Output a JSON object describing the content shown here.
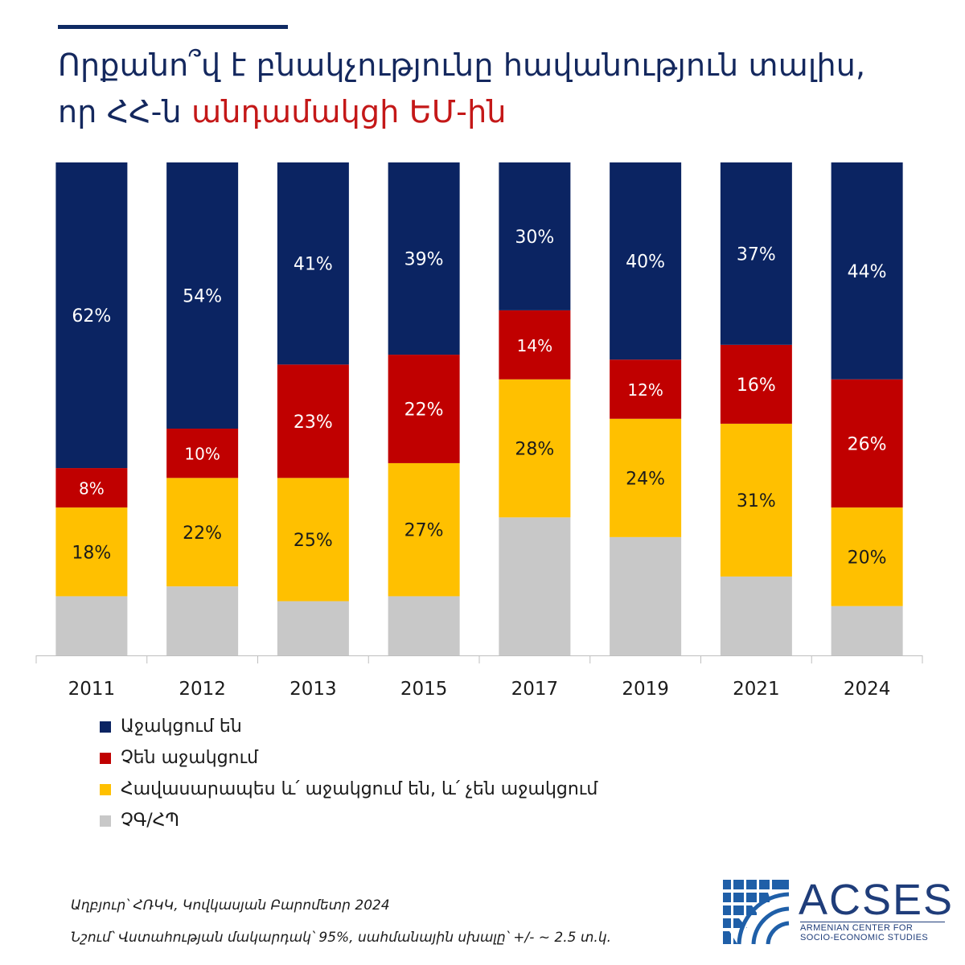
{
  "title": {
    "line1": "Որքանո՞վ է բնակչությունը հավանություն տալիս,",
    "line2_prefix": "որ ՀՀ-ն",
    "line2_highlight": "անդամակցի ԵՄ-ին"
  },
  "chart_data": {
    "type": "bar",
    "stacked": true,
    "categories": [
      "2011",
      "2012",
      "2013",
      "2015",
      "2017",
      "2019",
      "2021",
      "2024"
    ],
    "series": [
      {
        "name": "ՉԳ/ՀՊ",
        "color": "#c8c8c8",
        "values": [
          12,
          14,
          11,
          12,
          28,
          24,
          16,
          10
        ],
        "labels": [
          "",
          "",
          "",
          "",
          "",
          "",
          "",
          ""
        ]
      },
      {
        "name": "Հավասարապես և՛ աջակցում են, և՛ չեն աջակցում",
        "color": "#ffc000",
        "values": [
          18,
          22,
          25,
          27,
          28,
          24,
          31,
          20
        ],
        "labels": [
          "18%",
          "22%",
          "25%",
          "27%",
          "28%",
          "24%",
          "31%",
          "20%"
        ]
      },
      {
        "name": "Չեն աջակցում",
        "color": "#c00000",
        "values": [
          8,
          10,
          23,
          22,
          14,
          12,
          16,
          26
        ],
        "labels": [
          "8%",
          "10%",
          "23%",
          "22%",
          "14%",
          "12%",
          "16%",
          "26%"
        ]
      },
      {
        "name": "Աջակցում են",
        "color": "#0b2462",
        "values": [
          62,
          54,
          41,
          39,
          30,
          40,
          37,
          44
        ],
        "labels": [
          "62%",
          "54%",
          "41%",
          "39%",
          "30%",
          "40%",
          "37%",
          "44%"
        ]
      }
    ],
    "ylim": [
      0,
      100
    ],
    "grid": false,
    "legend_position": "bottom-left"
  },
  "legend": [
    {
      "label": "Աջակցում են",
      "color": "#0b2462"
    },
    {
      "label": "Չեն աջակցում",
      "color": "#c00000"
    },
    {
      "label": "Հավասարապես և՛ աջակցում են, և՛ չեն աջակցում",
      "color": "#ffc000"
    },
    {
      "label": "ՉԳ/ՀՊ",
      "color": "#c8c8c8"
    }
  ],
  "footnotes": {
    "source": "Աղբյուր՝ ՀՌԿԿ, Կովկասյան Բարոմետր 2024",
    "note": "Նշում՝ Վստահության մակարդակ՝ 95%, սահմանային սխալը՝ +/- ~ 2.5 տ.կ."
  },
  "logo": {
    "name": "ACSES",
    "subtitle_line1": "ARMENIAN CENTER FOR",
    "subtitle_line2": "SOCIO-ECONOMIC STUDIES"
  }
}
